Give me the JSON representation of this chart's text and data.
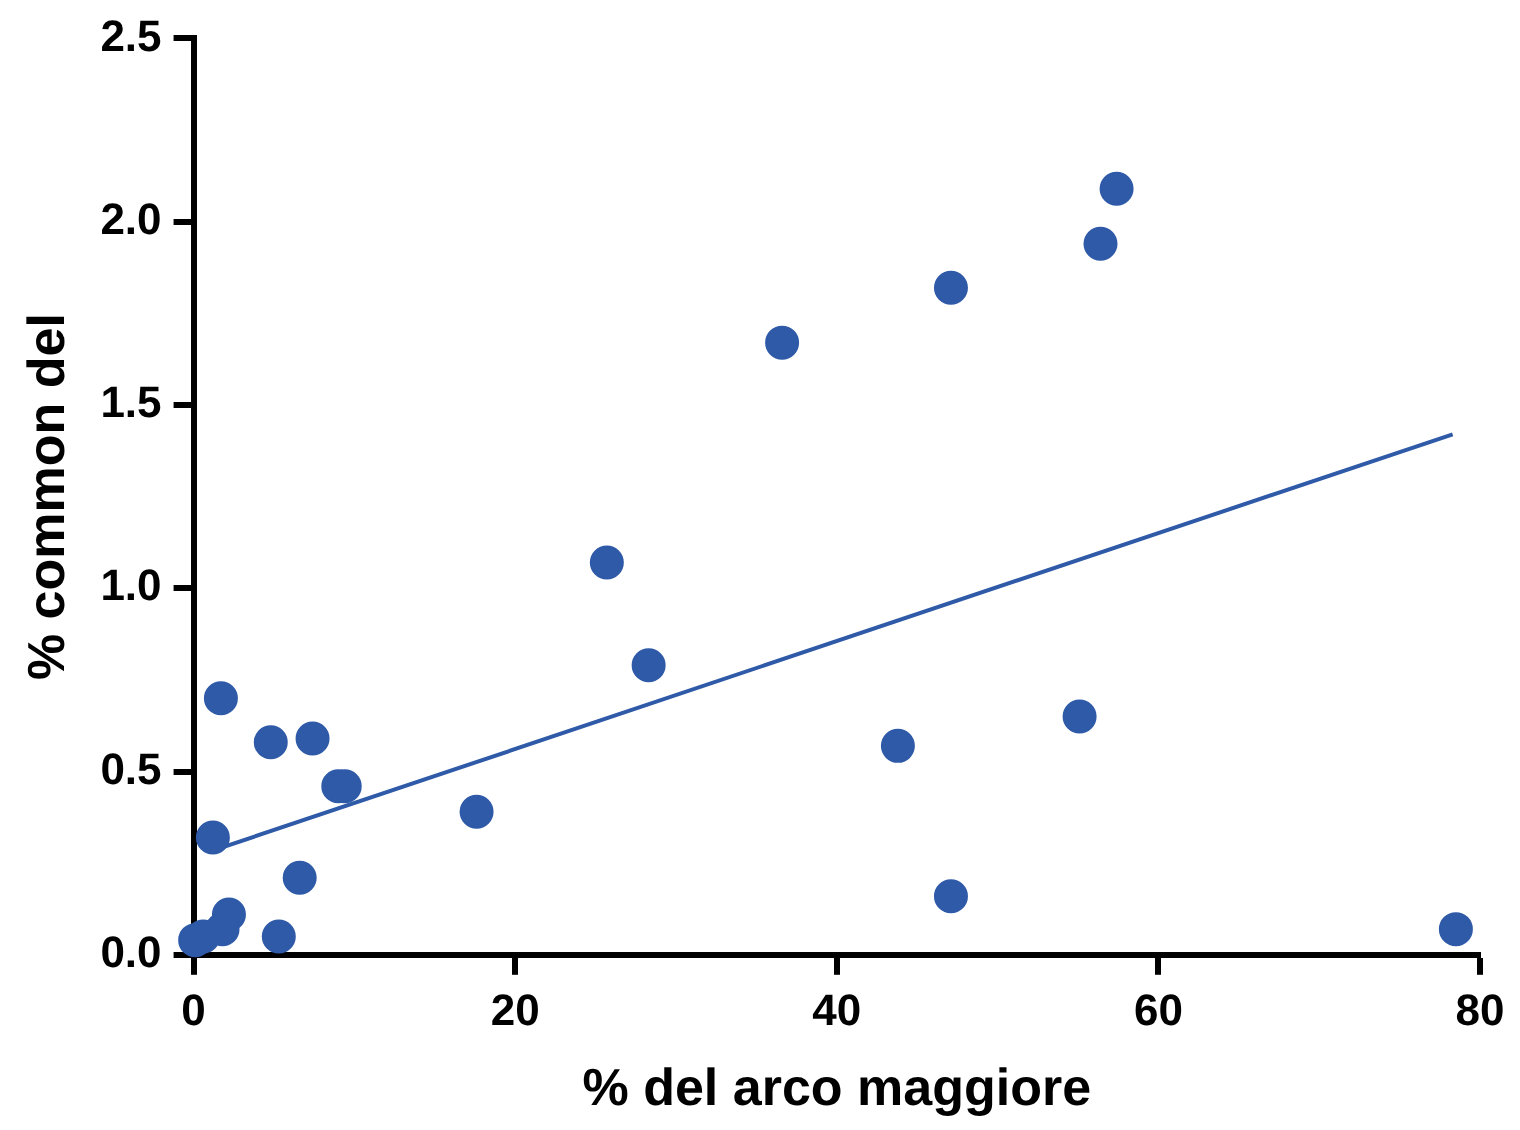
{
  "chart_data": {
    "type": "scatter",
    "xlabel": "% del arco maggiore",
    "ylabel": "% common del",
    "xlim": [
      0,
      80
    ],
    "xticks": [
      0,
      20,
      40,
      60,
      80
    ],
    "ylim": [
      0,
      2.5
    ],
    "yticks": [
      {
        "value": 0,
        "label": "0.0"
      },
      {
        "value": 0.5,
        "label": "0.5"
      },
      {
        "value": 1,
        "label": "1.0"
      },
      {
        "value": 1.5,
        "label": "1.5"
      },
      {
        "value": 2,
        "label": "2.0"
      },
      {
        "value": 2.5,
        "label": "2.5"
      }
    ],
    "grid": false,
    "series": [
      {
        "marker": "circle",
        "color": "#2f5aa8",
        "x": [
          0.1,
          0.6,
          2.2,
          1.8,
          1.7,
          1.2,
          4.8,
          7.4,
          5.3,
          6.6,
          9.0,
          9.4,
          17.6,
          25.7,
          28.3,
          36.6,
          43.8,
          47.1,
          47.1,
          55.1,
          56.4,
          57.4,
          78.5
        ],
        "values": [
          0.04,
          0.05,
          0.11,
          0.07,
          0.7,
          0.32,
          0.58,
          0.59,
          0.05,
          0.21,
          0.46,
          0.46,
          0.39,
          1.07,
          0.79,
          1.67,
          0.57,
          1.82,
          0.16,
          0.65,
          1.94,
          2.09,
          0.07
        ]
      },
      {
        "type": "line",
        "color": "#2f5aa8",
        "x": [
          0.9,
          78.3
        ],
        "values": [
          0.28,
          1.42
        ]
      }
    ]
  }
}
